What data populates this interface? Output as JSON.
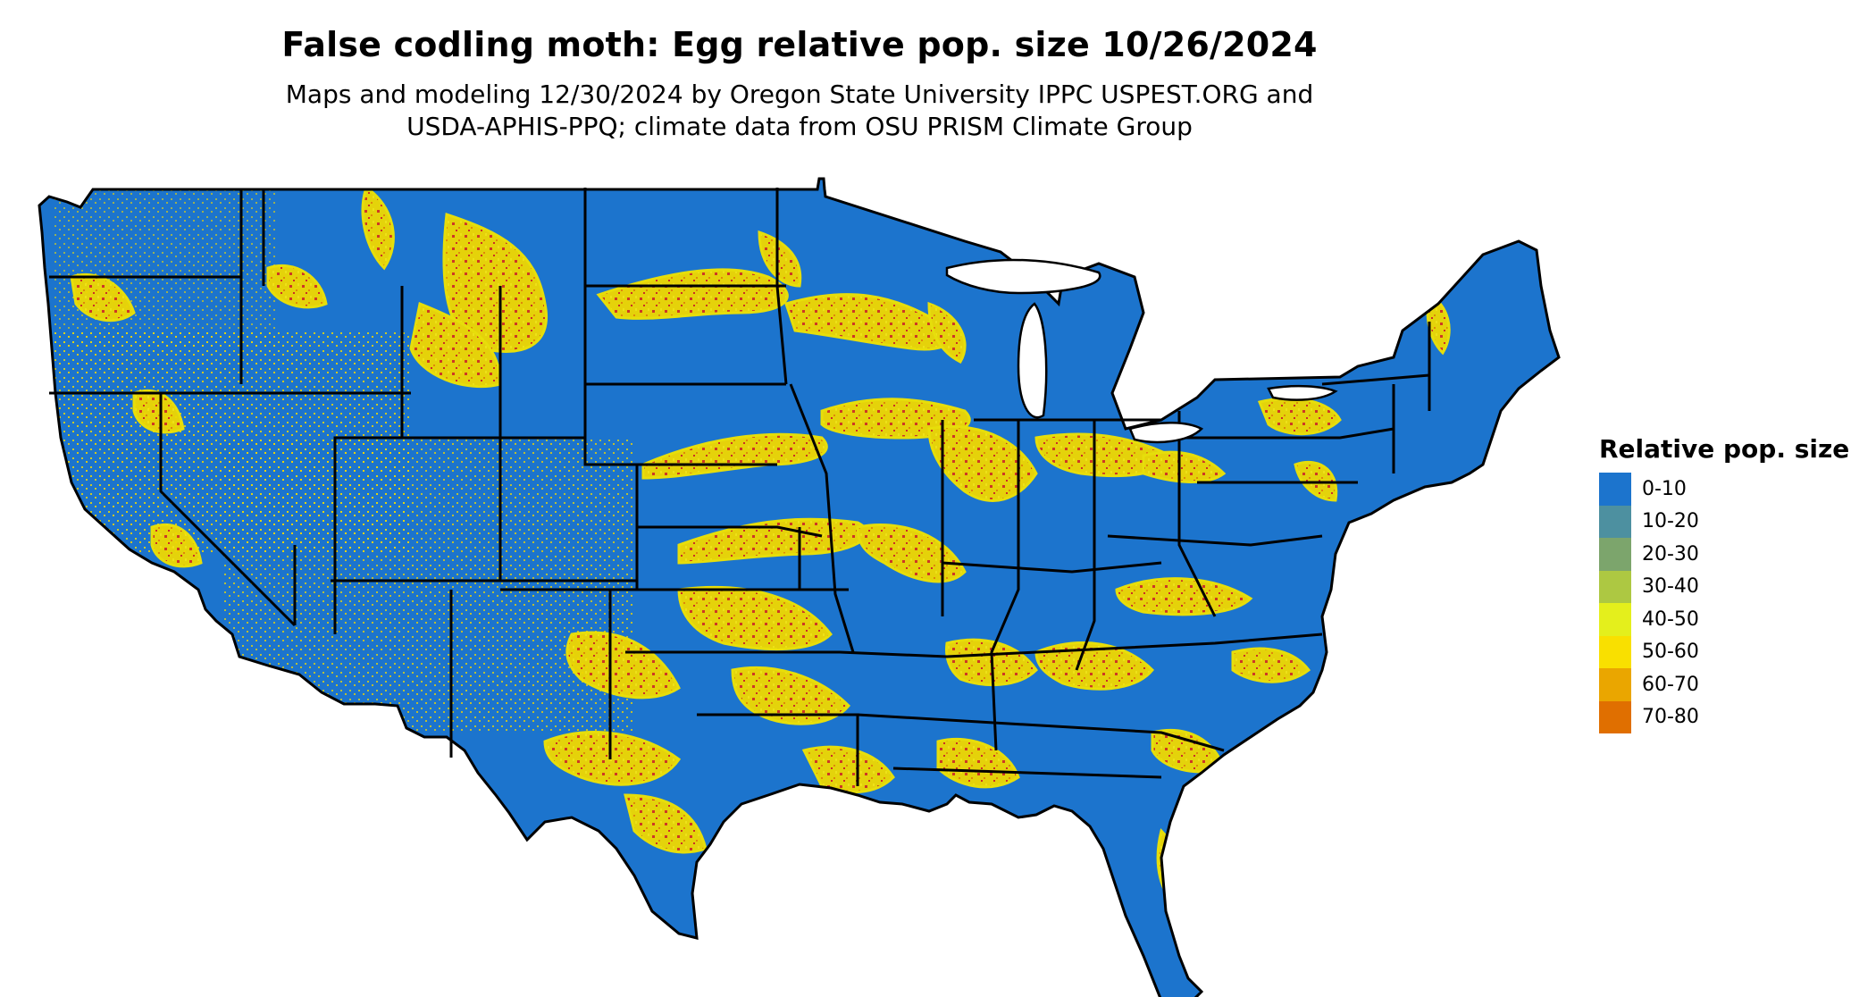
{
  "title": "False codling moth: Egg relative pop. size 10/26/2024",
  "subtitle_line1": "Maps and modeling 12/30/2024 by Oregon State University IPPC USPEST.ORG and",
  "subtitle_line2": "USDA-APHIS-PPQ; climate data from OSU PRISM Climate Group",
  "map": {
    "region": "conterminous United States",
    "background_class_color": "#1c74cd",
    "hotspot_colors": [
      "#e8d70b",
      "#f2e400",
      "#e6a500",
      "#d62a1e"
    ],
    "state_border_color": "#000000"
  },
  "legend": {
    "title": "Relative pop. size",
    "classes": [
      {
        "label": "0-10",
        "color": "#1c74cd"
      },
      {
        "label": "10-20",
        "color": "#4d90a0"
      },
      {
        "label": "20-30",
        "color": "#7ca56c"
      },
      {
        "label": "30-40",
        "color": "#adc842"
      },
      {
        "label": "40-50",
        "color": "#e4ef1c"
      },
      {
        "label": "50-60",
        "color": "#f9e000"
      },
      {
        "label": "60-70",
        "color": "#eaa600"
      },
      {
        "label": "70-80",
        "color": "#e06f00"
      }
    ]
  }
}
